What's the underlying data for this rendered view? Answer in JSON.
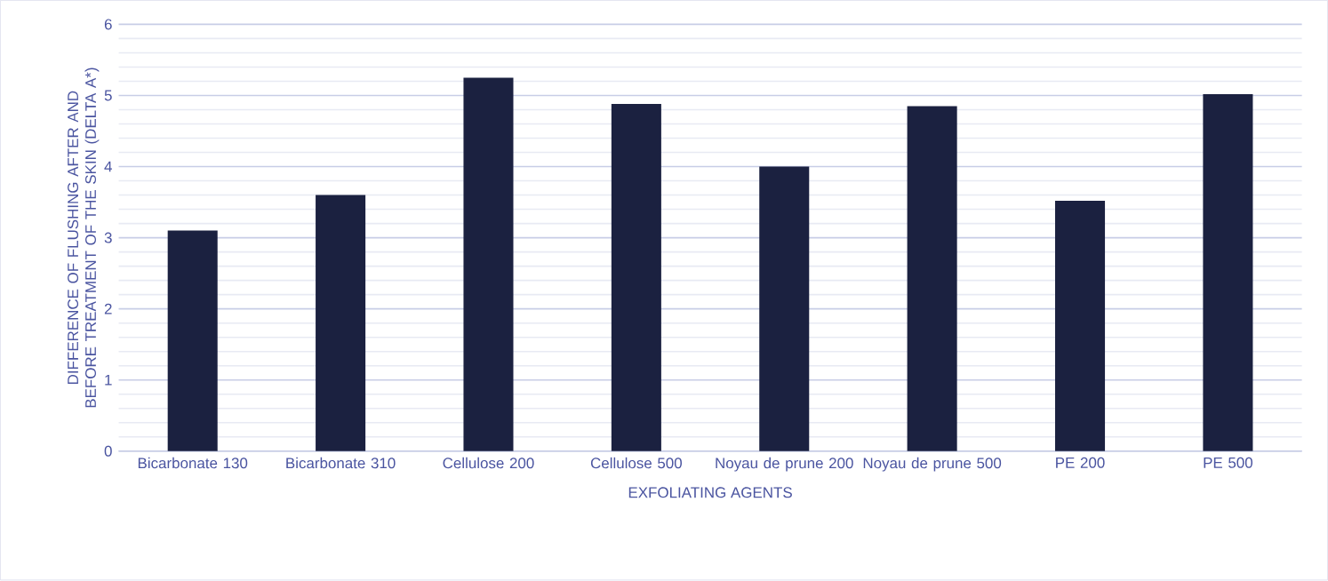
{
  "chart_data": {
    "type": "bar",
    "categories": [
      "Bicarbonate 130",
      "Bicarbonate 310",
      "Cellulose 200",
      "Cellulose 500",
      "Noyau de prune 200",
      "Noyau de prune 500",
      "PE 200",
      "PE 500"
    ],
    "values": [
      3.1,
      3.6,
      5.25,
      4.88,
      4.0,
      4.85,
      3.52,
      5.02
    ],
    "color": "#1b2140",
    "xlabel": "EXFOLIATING AGENTS",
    "ylabel": "DIFFERENCE OF FLUSHING AFTER AND BEFORE TREATMENT OF THE SKIN (DELTA A*)",
    "ylim": [
      0,
      6
    ],
    "yticks": [
      0,
      1,
      2,
      3,
      4,
      5,
      6
    ],
    "grid": "y"
  }
}
